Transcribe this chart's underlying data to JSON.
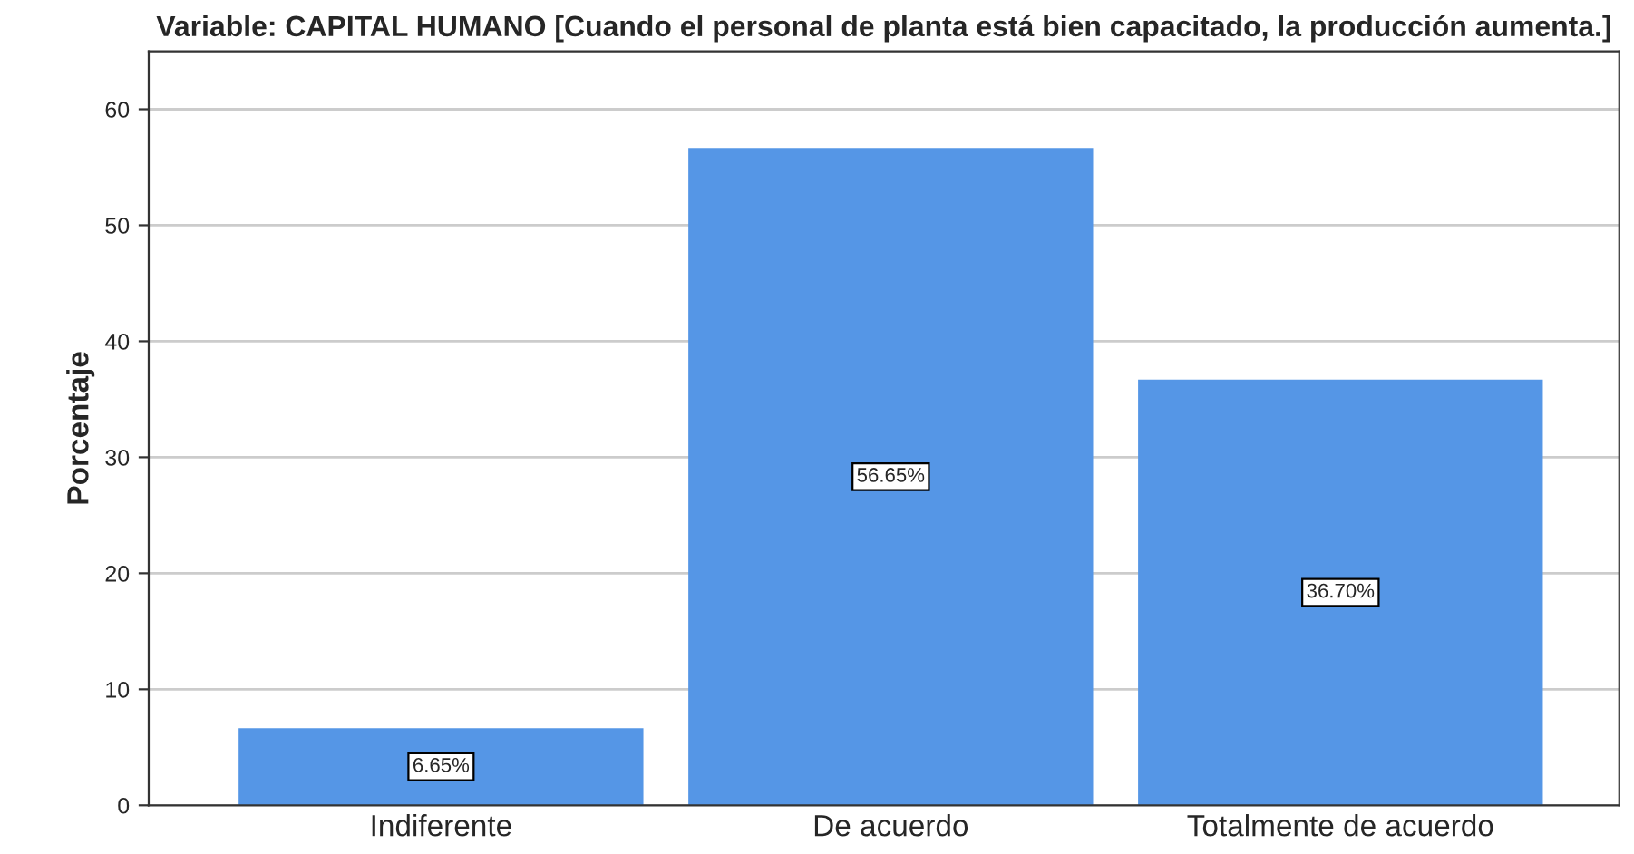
{
  "chart_data": {
    "type": "bar",
    "title": "Variable: CAPITAL HUMANO [Cuando el personal de planta está bien capacitado, la producción aumenta.]",
    "ylabel": "Porcentaje",
    "categories": [
      "Indiferente",
      "De acuerdo",
      "Totalmente de acuerdo"
    ],
    "values": [
      6.65,
      56.65,
      36.7
    ],
    "value_labels": [
      "6.65%",
      "56.65%",
      "36.70%"
    ],
    "color": "#5596e6",
    "ylim": [
      0,
      65
    ],
    "yticks": [
      0,
      10,
      20,
      30,
      40,
      50,
      60
    ],
    "grid": "y",
    "legend": false
  }
}
